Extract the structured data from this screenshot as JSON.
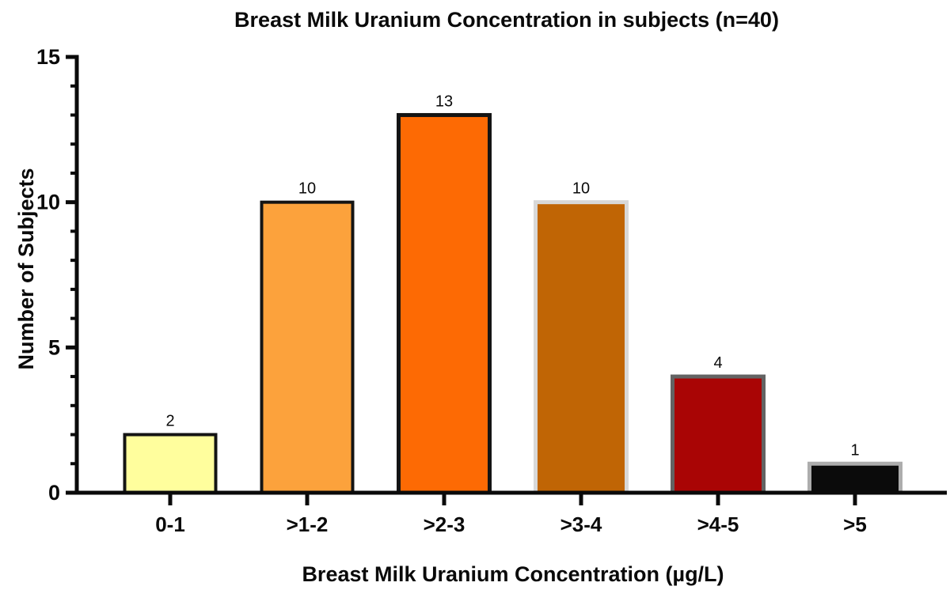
{
  "chart_data": {
    "type": "bar",
    "title": "Breast Milk Uranium Concentration in subjects (n=40)",
    "xlabel": "Breast Milk Uranium Concentration (µg/L)",
    "ylabel": "Number of Subjects",
    "categories": [
      "0-1",
      ">1-2",
      ">2-3",
      ">3-4",
      ">4-5",
      ">5"
    ],
    "values": [
      2,
      10,
      13,
      10,
      4,
      1
    ],
    "value_labels": [
      "2",
      "10",
      "13",
      "10",
      "4",
      "1"
    ],
    "ylim": [
      0,
      15
    ],
    "yticks": [
      0,
      5,
      10,
      15
    ],
    "minor_tick_interval": 1,
    "grid": false,
    "legend": "none",
    "axis_color": "#0a0a0a",
    "bar_styles": [
      {
        "fill": "#fffe9d",
        "stroke": "#141414",
        "stroke_width": 4
      },
      {
        "fill": "#fca23c",
        "stroke": "#141414",
        "stroke_width": 4
      },
      {
        "fill": "#fd6a04",
        "stroke": "#141414",
        "stroke_width": 5
      },
      {
        "fill": "#c06505",
        "stroke": "#d8d8d8",
        "stroke_width": 5
      },
      {
        "fill": "#a90505",
        "stroke": "#636363",
        "stroke_width": 5
      },
      {
        "fill": "#0b0b0b",
        "stroke": "#adadad",
        "stroke_width": 5
      }
    ]
  }
}
